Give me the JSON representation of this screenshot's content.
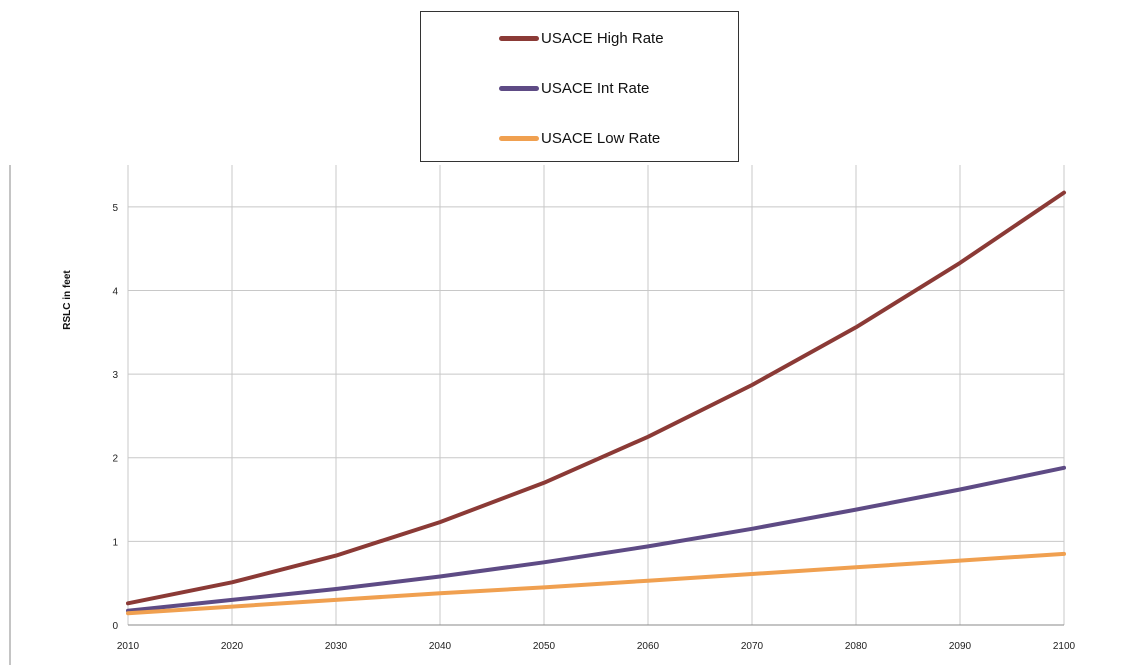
{
  "chart_data": {
    "type": "line",
    "title": "",
    "xlabel": "",
    "ylabel": "RSLC in feet",
    "x": [
      2010,
      2020,
      2030,
      2040,
      2050,
      2060,
      2070,
      2080,
      2090,
      2100
    ],
    "xlim": [
      2010,
      2100
    ],
    "ylim": [
      0,
      5.5
    ],
    "x_ticks": [
      "2010",
      "2020",
      "2030",
      "2040",
      "2050",
      "2060",
      "2070",
      "2080",
      "2090",
      "2100"
    ],
    "y_ticks": [
      "0",
      "1",
      "2",
      "3",
      "4",
      "5"
    ],
    "grid": true,
    "legend_position": "top-center",
    "series": [
      {
        "name": "USACE High Rate",
        "color": "#8b3a36",
        "values": [
          0.26,
          0.51,
          0.83,
          1.23,
          1.7,
          2.25,
          2.87,
          3.56,
          4.33,
          5.17
        ]
      },
      {
        "name": "USACE Int Rate",
        "color": "#5e4b85",
        "values": [
          0.17,
          0.3,
          0.43,
          0.58,
          0.75,
          0.94,
          1.15,
          1.38,
          1.62,
          1.88
        ]
      },
      {
        "name": "USACE Low Rate",
        "color": "#f0a050",
        "values": [
          0.14,
          0.22,
          0.3,
          0.38,
          0.45,
          0.53,
          0.61,
          0.69,
          0.77,
          0.85
        ]
      }
    ]
  }
}
